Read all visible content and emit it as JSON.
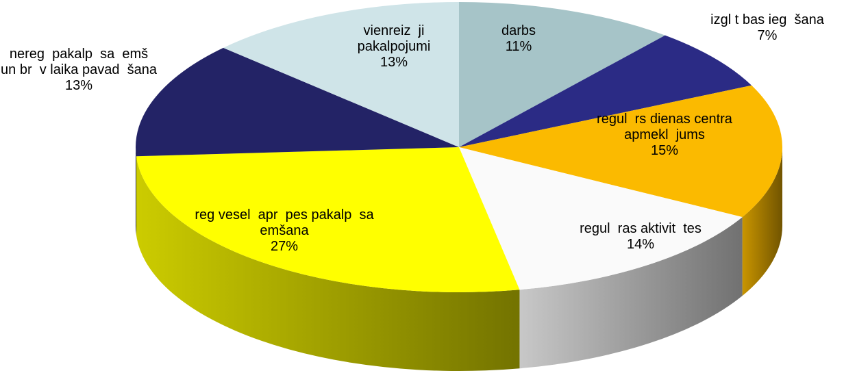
{
  "chart_data": {
    "type": "pie",
    "categories": [
      "darbs",
      "izgl t bas ieg  šana",
      "regul  rs dienas centra apmekl  jums",
      "regul  ras aktivit  tes",
      "reg vesel  apr  pes pakalp  sa  emšana",
      "nereg  pakalp  sa  emš un br  v laika pavad  šana",
      "vienreiz  ji pakalpojumi"
    ],
    "values": [
      11,
      7,
      15,
      14,
      27,
      13,
      13
    ],
    "value_labels": [
      "11%",
      "7%",
      "15%",
      "14%",
      "27%",
      "13%",
      "13%"
    ],
    "colors": [
      "#a6c4c8",
      "#2b2b85",
      "#fbba00",
      "#fafafa",
      "#ffff00",
      "#232366",
      "#cfe4e8"
    ]
  }
}
